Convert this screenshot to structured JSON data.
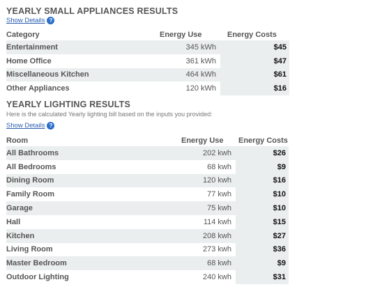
{
  "appliances": {
    "title": "YEARLY SMALL APPLIANCES RESULTS",
    "show_details": "Show Details",
    "help_glyph": "?",
    "columns": [
      "Category",
      "Energy Use",
      "Energy Costs"
    ],
    "rows": [
      {
        "name": "Entertainment",
        "use": "345 kWh",
        "cost": "$45"
      },
      {
        "name": "Home Office",
        "use": "361 kWh",
        "cost": "$47"
      },
      {
        "name": "Miscellaneous Kitchen",
        "use": "464 kWh",
        "cost": "$61"
      },
      {
        "name": "Other Appliances",
        "use": "120 kWh",
        "cost": "$16"
      }
    ]
  },
  "lighting": {
    "title": "YEARLY LIGHTING RESULTS",
    "subtitle": "Here is the calculated Yearly lighting bill based on the inputs you provided:",
    "show_details": "Show Details",
    "help_glyph": "?",
    "columns": [
      "Room",
      "Energy Use",
      "Energy Costs"
    ],
    "rows": [
      {
        "name": "All Bathrooms",
        "use": "202 kwh",
        "cost": "$26"
      },
      {
        "name": "All Bedrooms",
        "use": "68 kwh",
        "cost": "$9"
      },
      {
        "name": "Dining Room",
        "use": "120 kwh",
        "cost": "$16"
      },
      {
        "name": "Family Room",
        "use": "77 kwh",
        "cost": "$10"
      },
      {
        "name": "Garage",
        "use": "75 kwh",
        "cost": "$10"
      },
      {
        "name": "Hall",
        "use": "114 kwh",
        "cost": "$15"
      },
      {
        "name": "Kitchen",
        "use": "208 kwh",
        "cost": "$27"
      },
      {
        "name": "Living Room",
        "use": "273 kwh",
        "cost": "$36"
      },
      {
        "name": "Master Bedroom",
        "use": "68 kwh",
        "cost": "$9"
      },
      {
        "name": "Outdoor Lighting",
        "use": "240 kwh",
        "cost": "$31"
      }
    ]
  },
  "colors": {
    "row_shade": "#eaeeee",
    "link": "#2a5db0",
    "help_icon": "#2a6fc9"
  }
}
